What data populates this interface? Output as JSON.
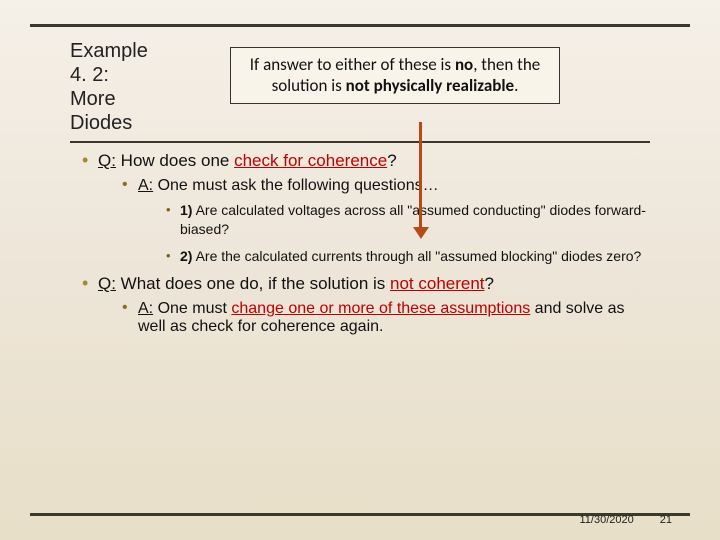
{
  "title": {
    "l1": "Example",
    "l2": "4. 2:",
    "l3": "More",
    "l4": "Diodes"
  },
  "callout": {
    "prefix": "If answer to either of these is ",
    "no": "no",
    "mid1": ", then the solution is ",
    "not": "not",
    "mid2": " ",
    "phys": "physically realizable",
    "suffix": "."
  },
  "q1": {
    "qlabel": "Q:",
    "text1": " How does one ",
    "check": "check for coherence",
    "text2": "?"
  },
  "a1": {
    "alabel": "A:",
    "text": " One must ask the following questions…"
  },
  "sub1": {
    "num": "1)",
    "text": " Are calculated voltages across all \"assumed conducting\" diodes forward-biased?"
  },
  "sub2": {
    "num": "2)",
    "text": " Are the calculated currents through all \"assumed blocking\" diodes zero?"
  },
  "q2": {
    "qlabel": "Q:",
    "text1": " What does one do, if the solution is ",
    "notcoh": "not coherent",
    "text2": "?"
  },
  "a2": {
    "alabel": "A:",
    "text1": " One must ",
    "change": "change one or more of these assumptions",
    "text2": " and solve as well as check for coherence again."
  },
  "footer": {
    "date": "11/30/2020",
    "page": "21"
  },
  "colors": {
    "accent_red": "#c00000",
    "arrow": "#b84a1a",
    "bullet": "#a68a2a",
    "rule": "#3a3a2a"
  }
}
